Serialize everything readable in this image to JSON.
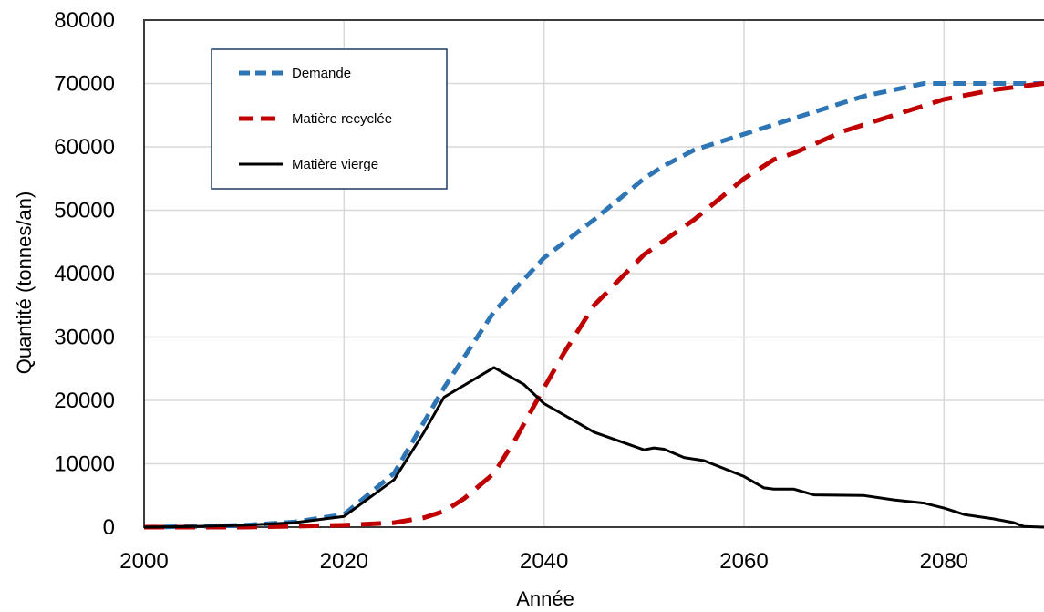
{
  "chart_data": {
    "type": "line",
    "title": "",
    "xlabel": "Année",
    "ylabel": "Quantité (tonnes/an)",
    "xlim": [
      2000,
      2090
    ],
    "ylim": [
      0,
      80000
    ],
    "x_ticks": [
      "2000",
      "2020",
      "2040",
      "2060",
      "2080"
    ],
    "y_ticks": [
      "0",
      "10000",
      "20000",
      "30000",
      "40000",
      "50000",
      "60000",
      "70000",
      "80000"
    ],
    "grid": true,
    "legend_position": "top-left",
    "series": [
      {
        "name": "Demande",
        "color": "#2e75b6",
        "style": "dashed",
        "points": [
          [
            2000,
            0
          ],
          [
            2005,
            100
          ],
          [
            2010,
            300
          ],
          [
            2015,
            800
          ],
          [
            2020,
            2000
          ],
          [
            2025,
            8500
          ],
          [
            2030,
            22000
          ],
          [
            2035,
            34000
          ],
          [
            2040,
            42500
          ],
          [
            2045,
            48500
          ],
          [
            2050,
            55000
          ],
          [
            2052,
            57000
          ],
          [
            2055,
            59500
          ],
          [
            2060,
            62000
          ],
          [
            2065,
            64500
          ],
          [
            2070,
            67000
          ],
          [
            2072,
            68000
          ],
          [
            2075,
            69000
          ],
          [
            2078,
            70000
          ],
          [
            2080,
            70000
          ],
          [
            2085,
            70000
          ],
          [
            2090,
            70000
          ]
        ]
      },
      {
        "name": "Matière recyclée",
        "color": "#c00000",
        "style": "dashed",
        "points": [
          [
            2000,
            0
          ],
          [
            2010,
            0
          ],
          [
            2020,
            300
          ],
          [
            2025,
            700
          ],
          [
            2028,
            1500
          ],
          [
            2030,
            2500
          ],
          [
            2032,
            4500
          ],
          [
            2035,
            8500
          ],
          [
            2037,
            13500
          ],
          [
            2040,
            22000
          ],
          [
            2042,
            27500
          ],
          [
            2045,
            35000
          ],
          [
            2050,
            43000
          ],
          [
            2055,
            48500
          ],
          [
            2060,
            55000
          ],
          [
            2063,
            58000
          ],
          [
            2065,
            59000
          ],
          [
            2070,
            62500
          ],
          [
            2075,
            65000
          ],
          [
            2080,
            67500
          ],
          [
            2085,
            69000
          ],
          [
            2090,
            70000
          ]
        ]
      },
      {
        "name": "Matière vierge",
        "color": "#000000",
        "style": "solid",
        "points": [
          [
            2000,
            0
          ],
          [
            2005,
            100
          ],
          [
            2010,
            300
          ],
          [
            2015,
            700
          ],
          [
            2020,
            1700
          ],
          [
            2025,
            7500
          ],
          [
            2028,
            15000
          ],
          [
            2030,
            20500
          ],
          [
            2035,
            25200
          ],
          [
            2038,
            22500
          ],
          [
            2040,
            19500
          ],
          [
            2045,
            15000
          ],
          [
            2050,
            12200
          ],
          [
            2051,
            12500
          ],
          [
            2052,
            12300
          ],
          [
            2054,
            11000
          ],
          [
            2056,
            10500
          ],
          [
            2060,
            8000
          ],
          [
            2062,
            6200
          ],
          [
            2063,
            6000
          ],
          [
            2065,
            6000
          ],
          [
            2067,
            5100
          ],
          [
            2072,
            5000
          ],
          [
            2075,
            4300
          ],
          [
            2078,
            3800
          ],
          [
            2080,
            3000
          ],
          [
            2082,
            2000
          ],
          [
            2085,
            1300
          ],
          [
            2087,
            700
          ],
          [
            2088,
            100
          ],
          [
            2090,
            0
          ]
        ]
      }
    ]
  }
}
